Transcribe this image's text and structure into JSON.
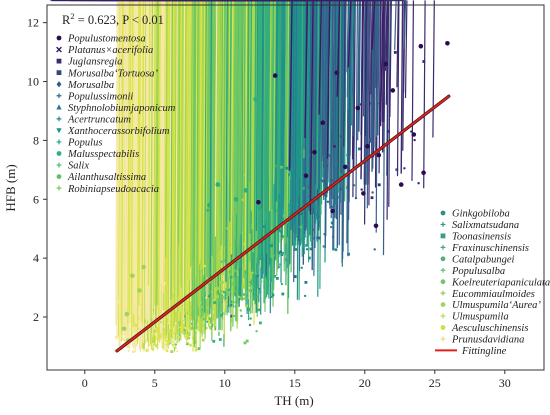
{
  "chart_data": {
    "type": "scatter",
    "title": "",
    "xlabel": "TH (m)",
    "ylabel": "HFB (m)",
    "xlim": [
      -2.7,
      32.8
    ],
    "ylim": [
      0.2,
      12.6
    ],
    "xticks": [
      0,
      5,
      10,
      15,
      20,
      25,
      30
    ],
    "yticks": [
      2,
      4,
      6,
      8,
      10,
      12
    ],
    "grid": false,
    "annotation": {
      "prefix": "R",
      "superscript": "2",
      "suffix": " = 0.623, P < 0.01"
    },
    "legend_left": [
      {
        "name": "Populustomentosa",
        "color": "#2d0b4f",
        "marker": "circle"
      },
      {
        "name": "Platanus×acerifolia",
        "color": "#3a1a66",
        "marker": "x"
      },
      {
        "name": "Juglansregia",
        "color": "#3b2a78",
        "marker": "square"
      },
      {
        "name": "Morusalba‘Tortuosa’",
        "color": "#35477d",
        "marker": "square"
      },
      {
        "name": "Morusalba",
        "color": "#2f5a85",
        "marker": "diamond"
      },
      {
        "name": "Populussimonii",
        "color": "#2b6a8c",
        "marker": "plus"
      },
      {
        "name": "Styphnolobiumjaponicum",
        "color": "#2a7890",
        "marker": "triangle"
      },
      {
        "name": "Acertruncatum",
        "color": "#24868e",
        "marker": "plus"
      },
      {
        "name": "Xanthocerassorbifolium",
        "color": "#1f938b",
        "marker": "triangle-down"
      },
      {
        "name": "Populus",
        "color": "#22a187",
        "marker": "plus"
      },
      {
        "name": "Malusspectabilis",
        "color": "#2fae7d",
        "marker": "circle"
      },
      {
        "name": "Salix",
        "color": "#45bb70",
        "marker": "plus"
      },
      {
        "name": "Ailanthusaltissima",
        "color": "#5ec462",
        "marker": "circle"
      },
      {
        "name": "Robiniapseudoacacia",
        "color": "#77cc55",
        "marker": "plus"
      }
    ],
    "legend_right": [
      {
        "name": "Ginkgobiloba",
        "color": "#2e8e8d",
        "marker": "circle"
      },
      {
        "name": "Salixmatsudana",
        "color": "#31958a",
        "marker": "plus"
      },
      {
        "name": "Toonasinensis",
        "color": "#3a9d86",
        "marker": "square"
      },
      {
        "name": "Fraxinuschinensis",
        "color": "#46a682",
        "marker": "plus"
      },
      {
        "name": "Catalpabungei",
        "color": "#55af7d",
        "marker": "circle"
      },
      {
        "name": "Populusalba",
        "color": "#66b977",
        "marker": "plus"
      },
      {
        "name": "Koelreuteriapaniculata",
        "color": "#79c270",
        "marker": "circle"
      },
      {
        "name": "Eucommiaulmoides",
        "color": "#8dca67",
        "marker": "plus"
      },
      {
        "name": "Ulmuspumila‘Aurea’",
        "color": "#a3d25d",
        "marker": "circle"
      },
      {
        "name": "Ulmuspumila",
        "color": "#b8d953",
        "marker": "plus"
      },
      {
        "name": "Aesculuschinensis",
        "color": "#cddf45",
        "marker": "circle"
      },
      {
        "name": "Prunusdavidiana",
        "color": "#f0d87a",
        "marker": "plus"
      },
      {
        "name": "Fittingline",
        "color": "#e0201b",
        "marker": "line"
      }
    ],
    "fit_line": {
      "x": [
        2.3,
        26.0
      ],
      "y": [
        0.85,
        9.5
      ],
      "color": "#e0201b",
      "shadow_color": "#3b1a1a"
    },
    "series": [
      {
        "name": "Populustomentosa",
        "color": "#2d0b4f",
        "x": [
          25.9,
          24.0,
          21.5,
          22.0,
          23.5,
          18.0,
          19.5,
          17.0,
          20.2,
          21.0,
          18.6,
          16.4,
          22.6,
          24.2,
          19.9,
          17.7,
          15.8,
          20.8,
          13.6,
          12.4
        ],
        "y": [
          11.3,
          11.2,
          10.6,
          9.7,
          8.2,
          10.3,
          9.1,
          8.6,
          7.8,
          7.5,
          7.1,
          7.6,
          6.5,
          6.9,
          6.2,
          5.6,
          6.8,
          5.1,
          10.2,
          5.9
        ]
      },
      {
        "name": "Platanus×acerifolia",
        "color": "#3a1a66",
        "x": [
          19.0,
          20.7,
          18.2,
          16.9,
          21.3,
          15.9,
          17.5,
          19.9,
          14.8,
          16.3
        ],
        "y": [
          10.4,
          11.0,
          9.4,
          8.8,
          8.4,
          8.0,
          7.3,
          6.6,
          6.9,
          5.4
        ]
      },
      {
        "name": "Malusspectabilis",
        "color": "#2fae7d",
        "x": [
          9.5,
          10.8,
          12.2,
          11.5,
          8.9,
          13.0
        ],
        "y": [
          6.5,
          6.0,
          9.4,
          6.3,
          5.8,
          6.6
        ]
      },
      {
        "name": "Ulmuspumila‘Aurea’",
        "color": "#a3d25d",
        "x": [
          3.0,
          3.4,
          2.8,
          3.9,
          4.2,
          3.1
        ],
        "y": [
          2.1,
          3.4,
          1.6,
          2.9,
          3.7,
          1.2
        ]
      }
    ]
  }
}
